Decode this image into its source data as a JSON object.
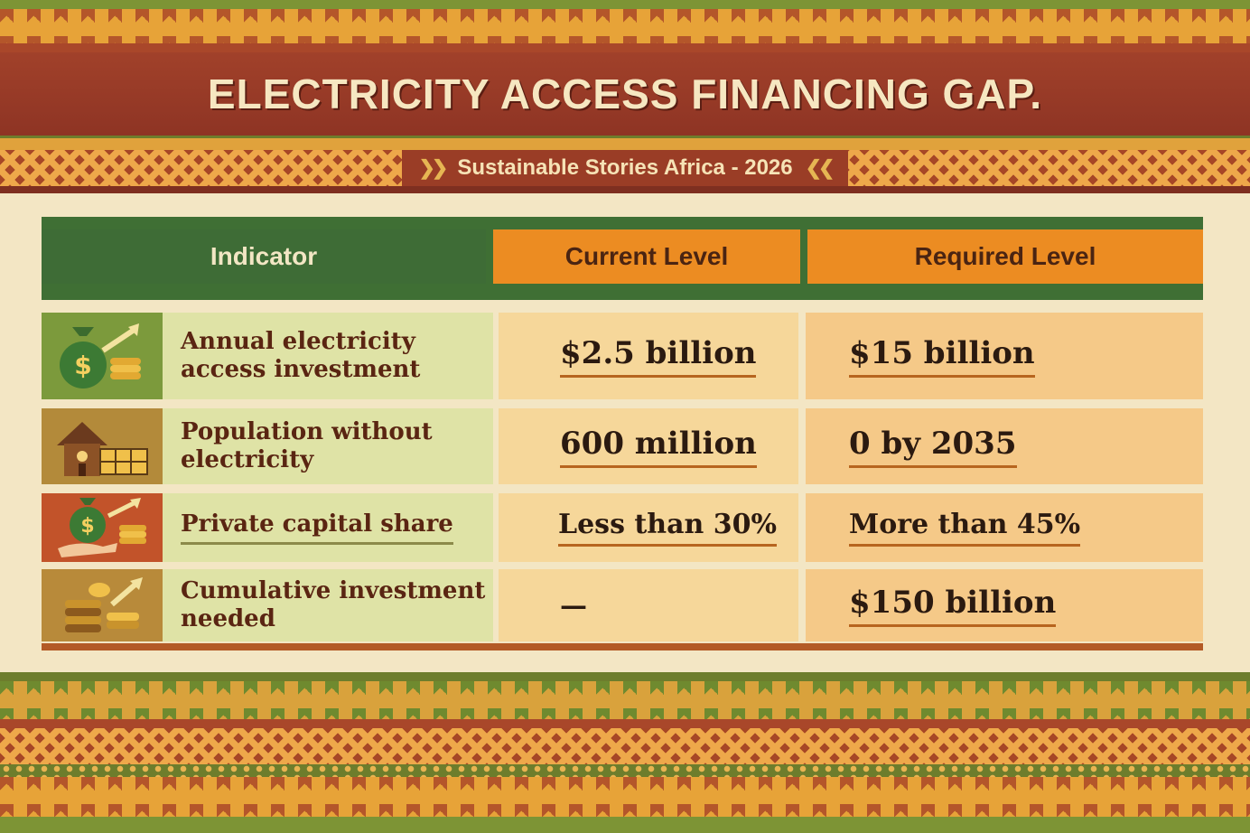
{
  "header": {
    "title": "ELECTRICITY ACCESS FINANCING GAP.",
    "subtitle": "Sustainable Stories Africa - 2026"
  },
  "chart_data": {
    "type": "table",
    "columns": [
      "Indicator",
      "Current Level",
      "Required Level"
    ],
    "rows": [
      {
        "icon": "money-bag-growth-icon",
        "indicator": "Annual electricity access investment",
        "current": "$2.5 billion",
        "required": "$15 billion"
      },
      {
        "icon": "house-solar-panel-icon",
        "indicator": "Population without electricity",
        "current": "600 million",
        "required": "0 by 2035"
      },
      {
        "icon": "hand-money-bag-icon",
        "indicator": "Private capital share",
        "current": "Less than 30%",
        "required": "More than 45%"
      },
      {
        "icon": "coin-stacks-growth-icon",
        "indicator": "Cumulative investment needed",
        "current": "—",
        "required": "$150 billion"
      }
    ]
  },
  "colors": {
    "title_band": "#9a3a27",
    "header_green": "#3e6c36",
    "header_orange": "#ec8c22",
    "label_cell": "#dfe3a6",
    "value_cell": "#f6d79a"
  }
}
